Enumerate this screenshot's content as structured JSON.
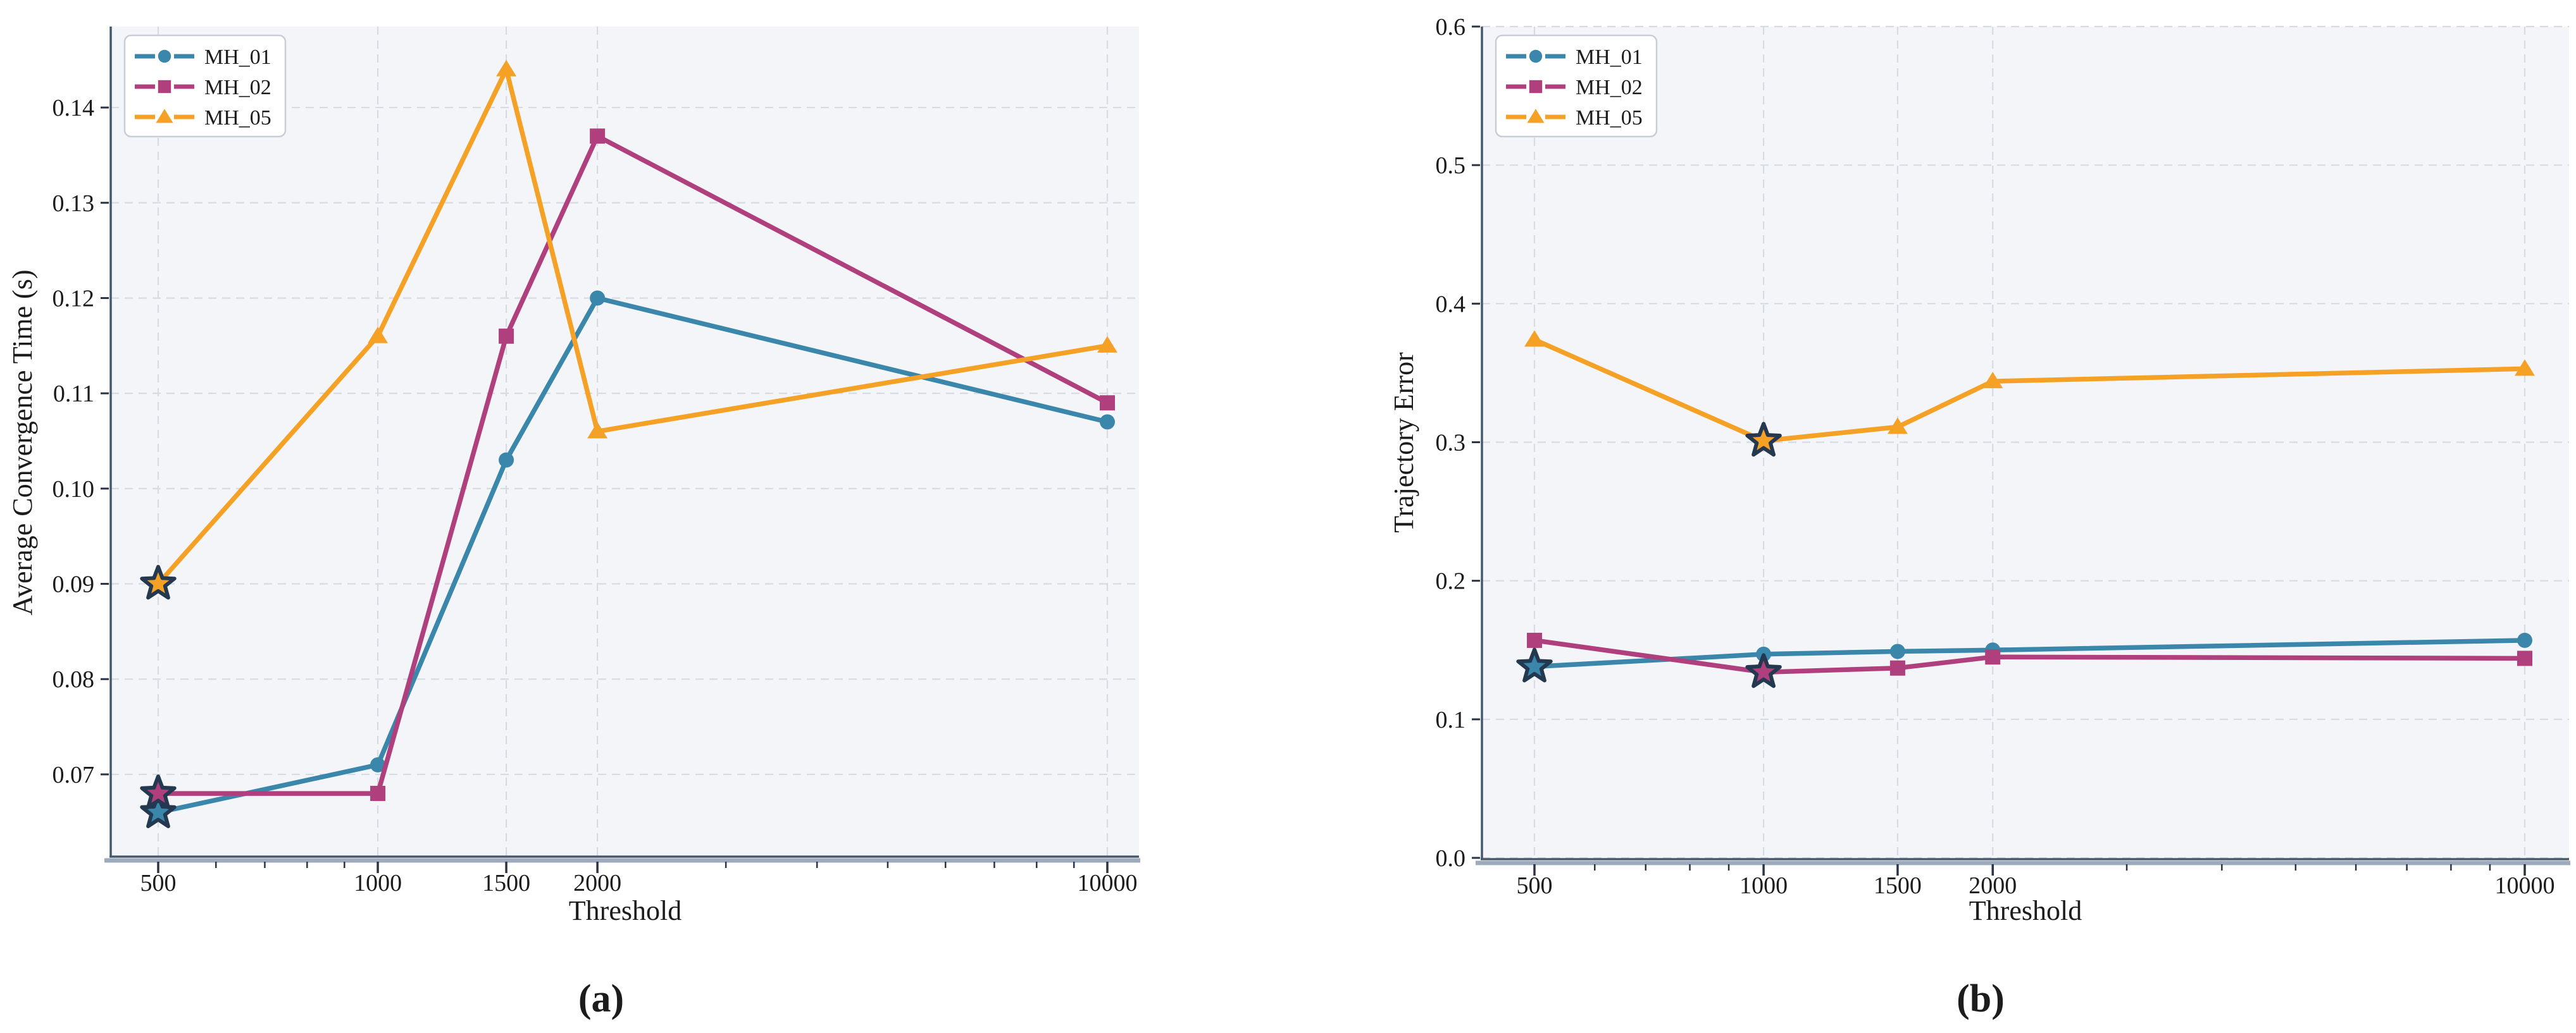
{
  "captions": {
    "a": "(a)",
    "b": "(b)"
  },
  "colors": {
    "background": "#ffffff",
    "plot_background": "#f3f5f9",
    "grid": "#d7dbe2",
    "spine_dark": "#46586d",
    "spine_light": "#8c9db1",
    "tick": "#2a3442",
    "text": "#1c1c1c",
    "legend_border": "#c9ced6",
    "legend_fill": "#ffffff",
    "star_edge": "#24384f"
  },
  "chart_data": [
    {
      "id": "a",
      "type": "line",
      "title": "",
      "xlabel": "Threshold",
      "ylabel": "Average Convergence Time (s)",
      "x_scale": "log",
      "grid": true,
      "legend_position": "upper left",
      "x": [
        500,
        1000,
        1500,
        2000,
        10000
      ],
      "x_tick_labels": [
        "500",
        "1000",
        "1500",
        "2000",
        "10000"
      ],
      "x_minor_ticks": [
        600,
        700,
        800,
        900,
        3000,
        4000,
        5000,
        6000,
        7000,
        8000,
        9000
      ],
      "ylim": [
        0.0615,
        0.1485
      ],
      "y_ticks": [
        0.07,
        0.08,
        0.09,
        0.1,
        0.11,
        0.12,
        0.13,
        0.14
      ],
      "y_tick_labels": [
        "0.07",
        "0.08",
        "0.09",
        "0.10",
        "0.11",
        "0.12",
        "0.13",
        "0.14"
      ],
      "series": [
        {
          "name": "MH_01",
          "color": "#3a87ab",
          "marker": "circle",
          "values": [
            0.066,
            0.071,
            0.103,
            0.12,
            0.107
          ],
          "star_x": 500
        },
        {
          "name": "MH_02",
          "color": "#b0407d",
          "marker": "square",
          "values": [
            0.068,
            0.068,
            0.116,
            0.137,
            0.109
          ],
          "star_x": 500
        },
        {
          "name": "MH_05",
          "color": "#f5a126",
          "marker": "triangle",
          "values": [
            0.09,
            0.116,
            0.144,
            0.106,
            0.115
          ],
          "star_x": 500
        }
      ]
    },
    {
      "id": "b",
      "type": "line",
      "title": "",
      "xlabel": "Threshold",
      "ylabel": "Trajectory Error",
      "x_scale": "log",
      "grid": true,
      "legend_position": "upper left",
      "x": [
        500,
        1000,
        1500,
        2000,
        10000
      ],
      "x_tick_labels": [
        "500",
        "1000",
        "1500",
        "2000",
        "10000"
      ],
      "x_minor_ticks": [
        600,
        700,
        800,
        900,
        3000,
        4000,
        5000,
        6000,
        7000,
        8000,
        9000
      ],
      "ylim": [
        0.0,
        0.6
      ],
      "y_ticks": [
        0.0,
        0.1,
        0.2,
        0.3,
        0.4,
        0.5,
        0.6
      ],
      "y_tick_labels": [
        "0.0",
        "0.1",
        "0.2",
        "0.3",
        "0.4",
        "0.5",
        "0.6"
      ],
      "series": [
        {
          "name": "MH_01",
          "color": "#3a87ab",
          "marker": "circle",
          "values": [
            0.138,
            0.147,
            0.149,
            0.15,
            0.157
          ],
          "star_x": 500
        },
        {
          "name": "MH_02",
          "color": "#b0407d",
          "marker": "square",
          "values": [
            0.157,
            0.134,
            0.137,
            0.145,
            0.144
          ],
          "star_x": 1000
        },
        {
          "name": "MH_05",
          "color": "#f5a126",
          "marker": "triangle",
          "values": [
            0.374,
            0.301,
            0.311,
            0.344,
            0.353
          ],
          "star_x": 1000
        }
      ]
    }
  ]
}
